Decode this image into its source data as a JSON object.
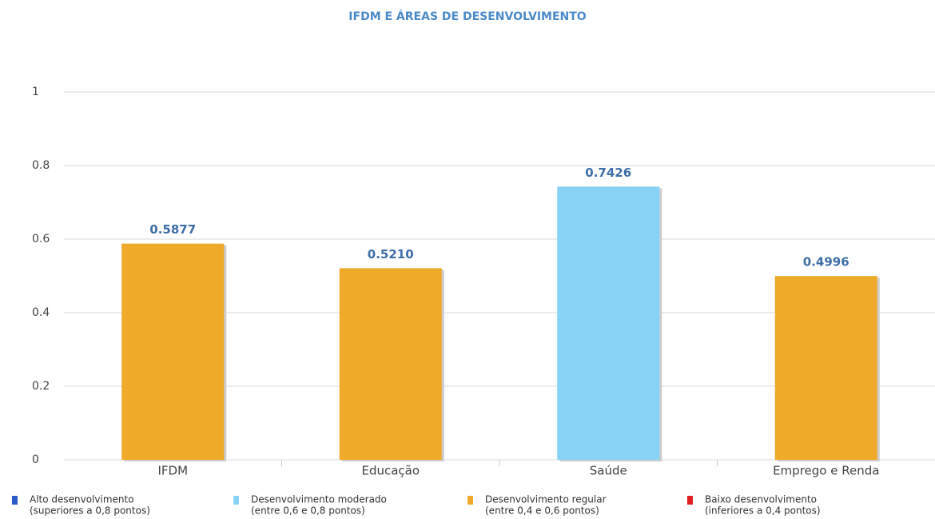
{
  "chart_data": {
    "type": "bar",
    "title": "IFDM E ÁREAS DE DESENVOLVIMENTO",
    "categories": [
      "IFDM",
      "Educação",
      "Saúde",
      "Emprego e Renda"
    ],
    "values": [
      0.5877,
      0.521,
      0.7426,
      0.4996
    ],
    "value_labels": [
      "0.5877",
      "0.5210",
      "0.7426",
      "0.4996"
    ],
    "colors": [
      "#eeaa28",
      "#eeaa28",
      "#87d3f5",
      "#eeaa28"
    ],
    "ylim": [
      0,
      1
    ],
    "yticks": [
      0,
      0.2,
      0.4,
      0.6,
      0.8,
      1
    ],
    "grid": true,
    "legend": [
      {
        "label": [
          "Alto desenvolvimento",
          "(superiores a 0,8 pontos)"
        ],
        "color": "#2a5cc8"
      },
      {
        "label": [
          "Desenvolvimento moderado",
          "(entre 0,6 e 0,8 pontos)"
        ],
        "color": "#87d3f5"
      },
      {
        "label": [
          "Desenvolvimento regular",
          "(entre 0,4 e 0,6 pontos)"
        ],
        "color": "#eeaa28"
      },
      {
        "label": [
          "Baixo desenvolvimento",
          "(inferiores a 0,4 pontos)"
        ],
        "color": "#e02020"
      }
    ]
  }
}
